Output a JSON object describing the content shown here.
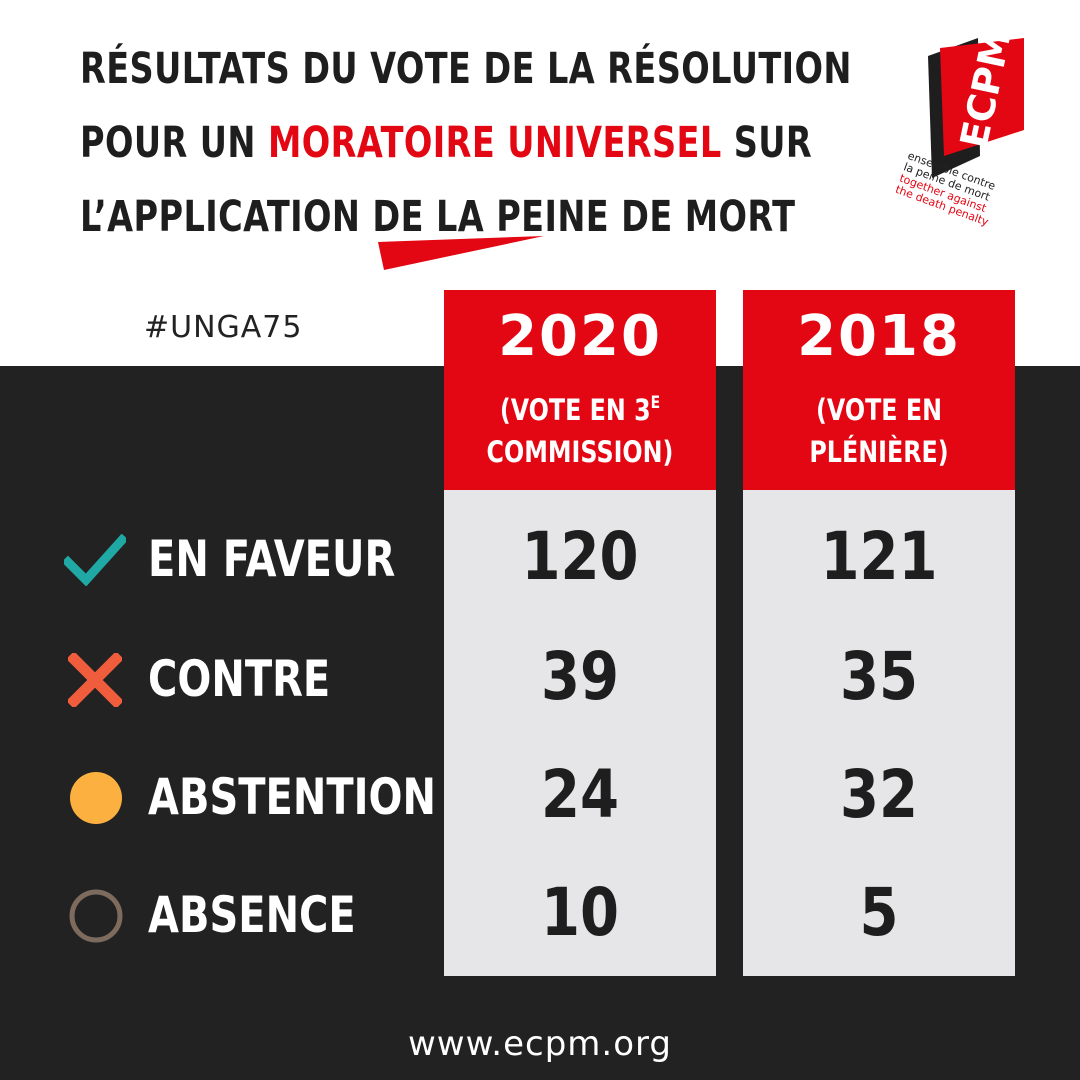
{
  "title": {
    "line1": "RÉSULTATS DU VOTE DE LA RÉSOLUTION",
    "line2_prefix": "POUR UN ",
    "line2_highlight": "MORATOIRE UNIVERSEL",
    "line2_suffix": " SUR",
    "line3": "L’APPLICATION DE LA PEINE DE MORT"
  },
  "logo": {
    "name": "ECPM",
    "tagline_fr_1": "ensemble contre",
    "tagline_fr_2": "la peine de mort",
    "tagline_en_1": "together against",
    "tagline_en_2": "the death penalty"
  },
  "hashtag": "#UNGA75",
  "columns": [
    {
      "year": "2020",
      "sub_line1": "(VOTE EN 3",
      "sub_sup": "E",
      "sub_line2": "COMMISSION)"
    },
    {
      "year": "2018",
      "sub_line1": "(VOTE EN",
      "sub_sup": "",
      "sub_line2": "PLÉNIÈRE)"
    }
  ],
  "rows": [
    {
      "label": "EN FAVEUR",
      "icon": "check-icon",
      "v2020": "120",
      "v2018": "121"
    },
    {
      "label": "CONTRE",
      "icon": "cross-icon",
      "v2020": "39",
      "v2018": "35"
    },
    {
      "label": "ABSTENTION",
      "icon": "filled-circle-icon",
      "v2020": "24",
      "v2018": "32"
    },
    {
      "label": "ABSENCE",
      "icon": "empty-circle-icon",
      "v2020": "10",
      "v2018": "5"
    }
  ],
  "footer": "www.ecpm.org",
  "colors": {
    "accent": "#e30613",
    "dark": "#222222",
    "check": "#1fa8a4",
    "cross": "#ef5d3d",
    "abstention": "#fbb040",
    "absence": "#7d6b5d"
  }
}
